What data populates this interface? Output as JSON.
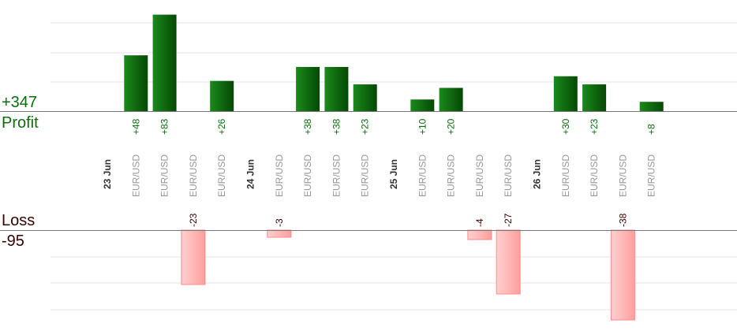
{
  "summary": {
    "profit_total": "+347",
    "profit_label": "Profit",
    "loss_label": "Loss",
    "loss_total": "-95"
  },
  "colors": {
    "profit_bar": "#0f6b0f",
    "profit_text": "#0b6e0b",
    "loss_bar": "#ffb3b3",
    "loss_text": "#3a0000",
    "date_text": "#333333",
    "pair_text": "#999999",
    "grid": "#e6e6e6",
    "axis": "#777777"
  },
  "chart_data": {
    "type": "bar",
    "title": "",
    "grid": true,
    "profit_axis_max": 95,
    "loss_axis_max": 40,
    "categories": [
      {
        "kind": "date",
        "label": "23 Jun"
      },
      {
        "kind": "trade",
        "label": "EUR/USD",
        "profit": "+48",
        "value": 48
      },
      {
        "kind": "trade",
        "label": "EUR/USD",
        "profit": "+83",
        "value": 83
      },
      {
        "kind": "trade",
        "label": "EUR/USD",
        "loss": "-23",
        "value": -23
      },
      {
        "kind": "trade",
        "label": "EUR/USD",
        "profit": "+26",
        "value": 26
      },
      {
        "kind": "date",
        "label": "24 Jun"
      },
      {
        "kind": "trade",
        "label": "EUR/USD",
        "loss": "-3",
        "value": -3
      },
      {
        "kind": "trade",
        "label": "EUR/USD",
        "profit": "+38",
        "value": 38
      },
      {
        "kind": "trade",
        "label": "EUR/USD",
        "profit": "+38",
        "value": 38
      },
      {
        "kind": "trade",
        "label": "EUR/USD",
        "profit": "+23",
        "value": 23
      },
      {
        "kind": "date",
        "label": "25 Jun"
      },
      {
        "kind": "trade",
        "label": "EUR/USD",
        "profit": "+10",
        "value": 10
      },
      {
        "kind": "trade",
        "label": "EUR/USD",
        "profit": "+20",
        "value": 20
      },
      {
        "kind": "trade",
        "label": "EUR/USD",
        "loss": "-4",
        "value": -4
      },
      {
        "kind": "trade",
        "label": "EUR/USD",
        "loss": "-27",
        "value": -27
      },
      {
        "kind": "date",
        "label": "26 Jun"
      },
      {
        "kind": "trade",
        "label": "EUR/USD",
        "profit": "+30",
        "value": 30
      },
      {
        "kind": "trade",
        "label": "EUR/USD",
        "profit": "+23",
        "value": 23
      },
      {
        "kind": "trade",
        "label": "EUR/USD",
        "loss": "-38",
        "value": -38
      },
      {
        "kind": "trade",
        "label": "EUR/USD",
        "profit": "+8",
        "value": 8
      }
    ]
  }
}
